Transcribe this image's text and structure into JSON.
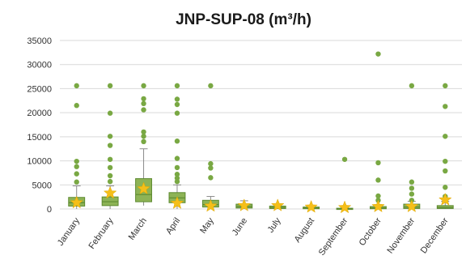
{
  "chart_data": {
    "type": "box",
    "title": "JNP-SUP-08 (m³/h)",
    "xlabel": "",
    "ylabel": "",
    "ylim": [
      0,
      35000
    ],
    "y_ticks": [
      0,
      5000,
      10000,
      15000,
      20000,
      25000,
      30000,
      35000
    ],
    "grid": true,
    "categories": [
      "January",
      "February",
      "March",
      "April",
      "May",
      "June",
      "July",
      "August",
      "September",
      "October",
      "November",
      "December"
    ],
    "boxes": [
      {
        "min": 0,
        "q1": 600,
        "median": 1300,
        "q3": 2400,
        "max": 4800,
        "mean": 1300
      },
      {
        "min": 0,
        "q1": 700,
        "median": 1500,
        "q3": 2500,
        "max": 4800,
        "mean": 3300
      },
      {
        "min": 700,
        "q1": 1500,
        "median": 3000,
        "q3": 6300,
        "max": 12500,
        "mean": 4200
      },
      {
        "min": 0,
        "q1": 1300,
        "median": 2300,
        "q3": 3400,
        "max": 5000,
        "mean": 1200
      },
      {
        "min": 0,
        "q1": 400,
        "median": 900,
        "q3": 1800,
        "max": 2600,
        "mean": 600
      },
      {
        "min": 0,
        "q1": 200,
        "median": 500,
        "q3": 1000,
        "max": 1700,
        "mean": 700
      },
      {
        "min": 0,
        "q1": 100,
        "median": 300,
        "q3": 600,
        "max": 900,
        "mean": 700
      },
      {
        "min": 0,
        "q1": 50,
        "median": 200,
        "q3": 400,
        "max": 700,
        "mean": 400
      },
      {
        "min": 0,
        "q1": 0,
        "median": 50,
        "q3": 150,
        "max": 300,
        "mean": 300
      },
      {
        "min": 0,
        "q1": 50,
        "median": 200,
        "q3": 500,
        "max": 900,
        "mean": 500
      },
      {
        "min": 0,
        "q1": 100,
        "median": 400,
        "q3": 1000,
        "max": 1600,
        "mean": 500
      },
      {
        "min": 0,
        "q1": 100,
        "median": 300,
        "q3": 700,
        "max": 1600,
        "mean": 1900
      }
    ],
    "outliers": [
      [
        25600,
        21500,
        9900,
        8800,
        7300,
        5600
      ],
      [
        25600,
        19900,
        15100,
        13200,
        10300,
        8600,
        6900,
        5700
      ],
      [
        25600,
        22900,
        21900,
        20600,
        16000,
        15100,
        14000
      ],
      [
        25600,
        22800,
        21700,
        19900,
        14100,
        10500,
        8600,
        7200,
        6400,
        5700
      ],
      [
        25600,
        9400,
        8500,
        6500
      ],
      [],
      [],
      [],
      [
        10300
      ],
      [
        32200,
        9600,
        6000,
        2700,
        1800
      ],
      [
        25600,
        5600,
        4300,
        3100,
        1800
      ],
      [
        25600,
        21300,
        15100,
        9900,
        7900,
        4500,
        2600
      ]
    ],
    "colors": {
      "box_fill": "#8db356",
      "box_stroke": "#5d8a30",
      "outlier": "#79a843",
      "mean_star": "#f5bf1a",
      "grid": "#d9d9d9",
      "whisker": "#8a8a8a"
    }
  }
}
